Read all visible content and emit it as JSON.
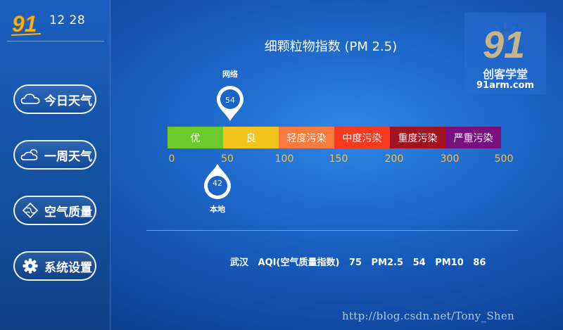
{
  "header": {
    "logo_text": "91",
    "time": "12 28"
  },
  "sidebar": {
    "items": [
      {
        "label": "今日天气",
        "icon": "cloud-icon"
      },
      {
        "label": "一周天气",
        "icon": "cloud-sun-icon"
      },
      {
        "label": "空气质量",
        "icon": "air-quality-icon"
      },
      {
        "label": "系统设置",
        "icon": "gear-icon"
      }
    ]
  },
  "main": {
    "title": "细颗粒物指数 (PM 2.5)",
    "network_pin": {
      "label": "网络",
      "value": "54"
    },
    "local_pin": {
      "label": "本地",
      "value": "42"
    },
    "scale": {
      "segments": [
        {
          "label": "优",
          "color": "#6dca2d",
          "from": 0,
          "to": 50
        },
        {
          "label": "良",
          "color": "#f3c41c",
          "from": 50,
          "to": 100
        },
        {
          "label": "轻度污染",
          "color": "#f77a3e",
          "from": 100,
          "to": 150
        },
        {
          "label": "中度污染",
          "color": "#f53a1f",
          "from": 150,
          "to": 200
        },
        {
          "label": "重度污染",
          "color": "#a21322",
          "from": 200,
          "to": 300
        },
        {
          "label": "严重污染",
          "color": "#781080",
          "from": 300,
          "to": 500
        }
      ],
      "ticks": [
        "0",
        "50",
        "100",
        "150",
        "200",
        "300",
        "500"
      ]
    },
    "info": {
      "city": "武汉",
      "aqi_label": "AQI(空气质量指数)",
      "aqi_value": "75",
      "pm25_label": "PM2.5",
      "pm25_value": "54",
      "pm10_label": "PM10",
      "pm10_value": "86"
    }
  },
  "watermark": {
    "logo_text": "91",
    "name": "创客学堂",
    "url": "91arm.com"
  },
  "footer": {
    "url": "http://blog.csdn.net/Tony_Shen"
  }
}
